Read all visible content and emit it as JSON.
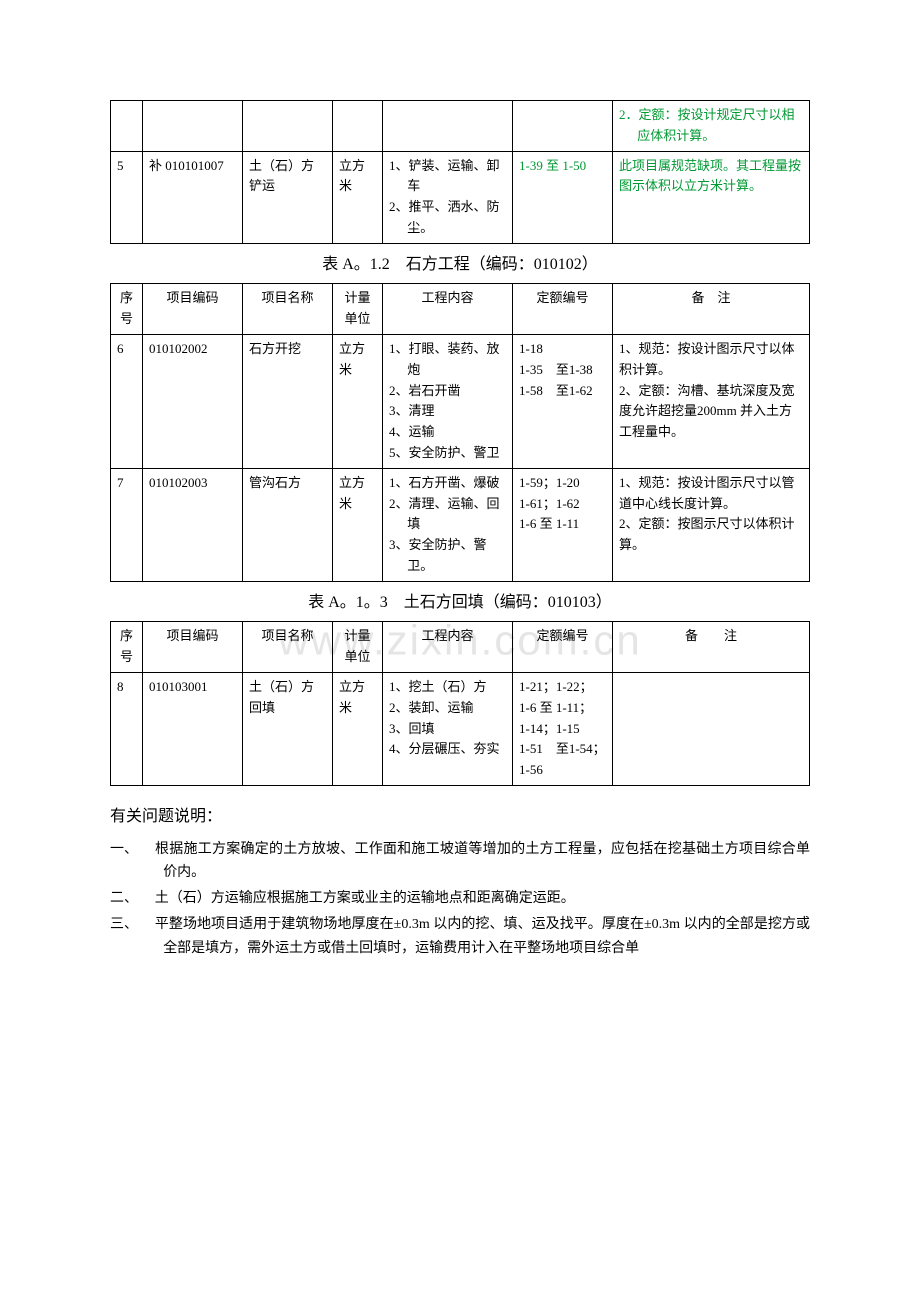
{
  "watermark": "www.zixin.com.cn",
  "table1": {
    "prev_row": {
      "notes": [
        "2．定额：按设计规定尺寸以相应体积计算。"
      ]
    },
    "row5": {
      "idx": "5",
      "code": "补 010101007",
      "name": "土（石）方铲运",
      "unit": "立方米",
      "content": [
        "1、铲装、运输、卸车",
        "2、推平、洒水、防尘。"
      ],
      "ref": "1-39 至 1-50",
      "notes": "此项目属规范缺项。其工程量按图示体积以立方米计算。"
    }
  },
  "caption2": "表 A。1.2　石方工程（编码：010102）",
  "table2": {
    "headers": {
      "idx": "序号",
      "code": "项目编码",
      "name": "项目名称",
      "unit": "计量单位",
      "content": "工程内容",
      "ref": "定额编号",
      "note": "备　注"
    },
    "row6": {
      "idx": "6",
      "code": "010102002",
      "name": "石方开挖",
      "unit": "立方米",
      "content": [
        "1、打眼、装药、放炮",
        "2、岩石开凿",
        "3、清理",
        "4、运输",
        "5、安全防护、警卫"
      ],
      "ref": [
        "1-18",
        "1-35　至1-38",
        "1-58　至1-62"
      ],
      "notes": [
        "1、规范：按设计图示尺寸以体积计算。",
        "2、定额：沟槽、基坑深度及宽度允许超挖量200mm 并入土方工程量中。"
      ]
    },
    "row7": {
      "idx": "7",
      "code": "010102003",
      "name": "管沟石方",
      "unit": "立方米",
      "content": [
        "1、石方开凿、爆破",
        "2、清理、运输、回填",
        "3、安全防护、警卫。"
      ],
      "ref": [
        "1-59；1-20",
        "1-61；1-62",
        "1-6 至 1-11"
      ],
      "notes": [
        "1、规范：按设计图示尺寸以管道中心线长度计算。",
        "2、定额：按图示尺寸以体积计算。"
      ]
    }
  },
  "caption3": "表 A。1。3　土石方回填（编码：010103）",
  "table3": {
    "headers": {
      "idx": "序号",
      "code": "项目编码",
      "name": "项目名称",
      "unit": "计量单位",
      "content": "工程内容",
      "ref": "定额编号",
      "note": "备　　注"
    },
    "row8": {
      "idx": "8",
      "code": "010103001",
      "name": "土（石）方回填",
      "unit": "立方米",
      "content": [
        "1、挖土（石）方",
        "2、装卸、运输",
        "3、回填",
        "4、分层碾压、夯实"
      ],
      "ref": [
        "1-21；1-22；",
        "1-6 至 1-11；",
        "1-14；1-15",
        "1-51　至1-54；1-56"
      ],
      "notes": ""
    }
  },
  "explain": {
    "title": "有关问题说明：",
    "items": [
      {
        "num": "一、",
        "text": "根据施工方案确定的土方放坡、工作面和施工坡道等增加的土方工程量，应包括在挖基础土方项目综合单价内。"
      },
      {
        "num": "二、",
        "text": "土（石）方运输应根据施工方案或业主的运输地点和距离确定运距。"
      },
      {
        "num": "三、",
        "text": "平整场地项目适用于建筑物场地厚度在±0.3m 以内的挖、填、运及找平。厚度在±0.3m 以内的全部是挖方或全部是填方，需外运土方或借土回填时，运输费用计入在平整场地项目综合单"
      }
    ]
  }
}
